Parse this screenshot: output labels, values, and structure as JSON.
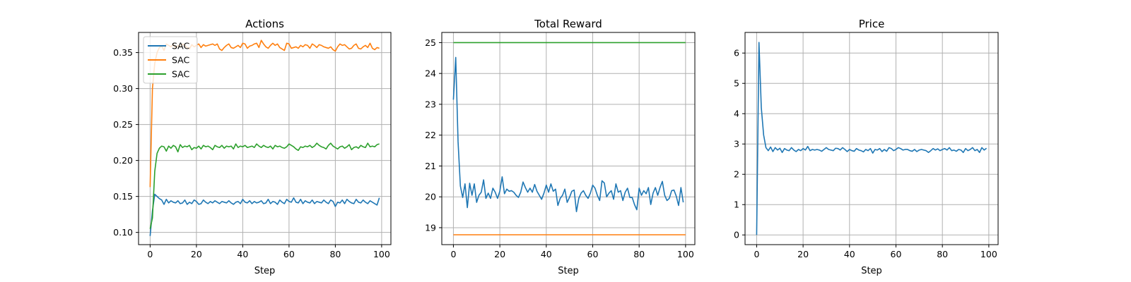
{
  "colors": {
    "tab_blue": "#1f77b4",
    "tab_orange": "#ff7f0e",
    "tab_green": "#2ca02c"
  },
  "chart_data": [
    {
      "type": "line",
      "title": "Actions",
      "xlabel": "Step",
      "ylabel": "",
      "xlim": [
        -5,
        104
      ],
      "ylim": [
        0.083,
        0.378
      ],
      "xticks": [
        0,
        20,
        40,
        60,
        80,
        100
      ],
      "yticks": [
        0.1,
        0.15,
        0.2,
        0.25,
        0.3,
        0.35
      ],
      "ytick_labels": [
        "0.10",
        "0.15",
        "0.20",
        "0.25",
        "0.30",
        "0.35"
      ],
      "grid": true,
      "legend": {
        "placement": "top-left",
        "entries": [
          "SAC",
          "SAC",
          "SAC"
        ]
      },
      "series": [
        {
          "name": "SAC",
          "color": "#1f77b4",
          "x_start": 0,
          "values": [
            0.095,
            0.13,
            0.153,
            0.15,
            0.147,
            0.145,
            0.139,
            0.146,
            0.141,
            0.144,
            0.142,
            0.141,
            0.144,
            0.14,
            0.141,
            0.145,
            0.139,
            0.142,
            0.14,
            0.145,
            0.143,
            0.139,
            0.14,
            0.145,
            0.142,
            0.14,
            0.143,
            0.141,
            0.144,
            0.142,
            0.14,
            0.143,
            0.142,
            0.141,
            0.144,
            0.141,
            0.139,
            0.142,
            0.143,
            0.14,
            0.146,
            0.142,
            0.141,
            0.144,
            0.14,
            0.143,
            0.141,
            0.142,
            0.144,
            0.14,
            0.141,
            0.146,
            0.14,
            0.143,
            0.142,
            0.139,
            0.145,
            0.142,
            0.14,
            0.146,
            0.143,
            0.142,
            0.148,
            0.142,
            0.141,
            0.146,
            0.14,
            0.144,
            0.142,
            0.141,
            0.145,
            0.14,
            0.143,
            0.142,
            0.141,
            0.145,
            0.142,
            0.14,
            0.145,
            0.143,
            0.136,
            0.142,
            0.141,
            0.145,
            0.14,
            0.146,
            0.143,
            0.141,
            0.14,
            0.146,
            0.142,
            0.141,
            0.145,
            0.142,
            0.14,
            0.144,
            0.142,
            0.14,
            0.138,
            0.148
          ]
        },
        {
          "name": "SAC",
          "color": "#ff7f0e",
          "x_start": 0,
          "values": [
            0.163,
            0.3,
            0.335,
            0.35,
            0.357,
            0.359,
            0.353,
            0.362,
            0.36,
            0.358,
            0.362,
            0.356,
            0.36,
            0.358,
            0.362,
            0.36,
            0.357,
            0.355,
            0.361,
            0.358,
            0.36,
            0.362,
            0.357,
            0.361,
            0.359,
            0.36,
            0.361,
            0.362,
            0.36,
            0.362,
            0.355,
            0.353,
            0.357,
            0.36,
            0.362,
            0.357,
            0.356,
            0.358,
            0.36,
            0.357,
            0.363,
            0.362,
            0.356,
            0.359,
            0.36,
            0.362,
            0.363,
            0.357,
            0.367,
            0.362,
            0.358,
            0.356,
            0.36,
            0.363,
            0.36,
            0.362,
            0.357,
            0.355,
            0.353,
            0.363,
            0.362,
            0.356,
            0.357,
            0.358,
            0.356,
            0.36,
            0.358,
            0.361,
            0.36,
            0.356,
            0.362,
            0.36,
            0.357,
            0.361,
            0.36,
            0.358,
            0.357,
            0.356,
            0.358,
            0.354,
            0.352,
            0.358,
            0.362,
            0.36,
            0.361,
            0.358,
            0.355,
            0.356,
            0.36,
            0.362,
            0.356,
            0.355,
            0.358,
            0.36,
            0.357,
            0.363,
            0.356,
            0.354,
            0.357,
            0.356
          ]
        },
        {
          "name": "SAC",
          "color": "#2ca02c",
          "x_start": 0,
          "values": [
            0.105,
            0.12,
            0.185,
            0.21,
            0.217,
            0.22,
            0.219,
            0.213,
            0.22,
            0.217,
            0.221,
            0.219,
            0.212,
            0.222,
            0.218,
            0.22,
            0.219,
            0.221,
            0.215,
            0.218,
            0.217,
            0.22,
            0.216,
            0.221,
            0.219,
            0.22,
            0.218,
            0.215,
            0.221,
            0.219,
            0.218,
            0.221,
            0.217,
            0.22,
            0.219,
            0.22,
            0.216,
            0.223,
            0.218,
            0.22,
            0.219,
            0.221,
            0.218,
            0.219,
            0.22,
            0.218,
            0.223,
            0.22,
            0.218,
            0.221,
            0.219,
            0.218,
            0.22,
            0.216,
            0.221,
            0.219,
            0.22,
            0.218,
            0.217,
            0.219,
            0.223,
            0.221,
            0.219,
            0.216,
            0.214,
            0.219,
            0.218,
            0.22,
            0.219,
            0.221,
            0.218,
            0.22,
            0.224,
            0.221,
            0.219,
            0.218,
            0.216,
            0.221,
            0.224,
            0.22,
            0.218,
            0.216,
            0.219,
            0.22,
            0.217,
            0.219,
            0.222,
            0.215,
            0.218,
            0.219,
            0.217,
            0.221,
            0.219,
            0.218,
            0.224,
            0.219,
            0.22,
            0.219,
            0.222,
            0.223
          ]
        }
      ]
    },
    {
      "type": "line",
      "title": "Total Reward",
      "xlabel": "Step",
      "ylabel": "",
      "xlim": [
        -5,
        104
      ],
      "ylim": [
        18.45,
        25.33
      ],
      "xticks": [
        0,
        20,
        40,
        60,
        80,
        100
      ],
      "yticks": [
        19,
        20,
        21,
        22,
        23,
        24,
        25
      ],
      "ytick_labels": [
        "19",
        "20",
        "21",
        "22",
        "23",
        "24",
        "25"
      ],
      "grid": true,
      "series": [
        {
          "color": "#1f77b4",
          "x_start": 0,
          "values": [
            23.15,
            24.52,
            21.8,
            20.35,
            19.98,
            20.42,
            19.65,
            20.44,
            20.05,
            20.42,
            19.82,
            20.05,
            20.15,
            20.55,
            19.95,
            20.12,
            19.95,
            20.28,
            20.15,
            19.95,
            20.18,
            20.65,
            20.1,
            20.25,
            20.18,
            20.2,
            20.15,
            20.05,
            19.98,
            20.15,
            20.48,
            20.3,
            20.15,
            20.28,
            20.15,
            20.4,
            20.18,
            20.05,
            19.92,
            20.12,
            20.38,
            20.15,
            20.42,
            20.18,
            20.25,
            19.72,
            19.95,
            20.05,
            20.25,
            19.82,
            19.98,
            20.18,
            20.22,
            19.52,
            19.95,
            20.12,
            20.2,
            20.05,
            19.95,
            20.12,
            20.38,
            20.28,
            20.05,
            19.88,
            20.52,
            20.45,
            20.0,
            20.12,
            20.2,
            19.92,
            20.42,
            20.15,
            20.2,
            19.88,
            20.15,
            20.28,
            19.98,
            19.98,
            19.75,
            19.58,
            20.28,
            20.05,
            20.2,
            20.1,
            20.3,
            19.75,
            20.12,
            20.3,
            20.05,
            20.3,
            20.5,
            20.05,
            19.88,
            19.95,
            20.2,
            20.22,
            20.02,
            19.72,
            20.3,
            19.82
          ]
        },
        {
          "color": "#ff7f0e",
          "x_start": 0,
          "values": [
            18.77,
            18.77,
            18.77,
            18.77,
            18.77,
            18.77,
            18.77,
            18.77,
            18.77,
            18.77,
            18.77,
            18.77,
            18.77,
            18.77,
            18.77,
            18.77,
            18.77,
            18.77,
            18.77,
            18.77,
            18.77,
            18.77,
            18.77,
            18.77,
            18.77,
            18.77,
            18.77,
            18.77,
            18.77,
            18.77,
            18.77,
            18.77,
            18.77,
            18.77,
            18.77,
            18.77,
            18.77,
            18.77,
            18.77,
            18.77,
            18.77,
            18.77,
            18.77,
            18.77,
            18.77,
            18.77,
            18.77,
            18.77,
            18.77,
            18.77,
            18.77,
            18.77,
            18.77,
            18.77,
            18.77,
            18.77,
            18.77,
            18.77,
            18.77,
            18.77,
            18.77,
            18.77,
            18.77,
            18.77,
            18.77,
            18.77,
            18.77,
            18.77,
            18.77,
            18.77,
            18.77,
            18.77,
            18.77,
            18.77,
            18.77,
            18.77,
            18.77,
            18.77,
            18.77,
            18.77,
            18.77,
            18.77,
            18.77,
            18.77,
            18.77,
            18.77,
            18.77,
            18.77,
            18.77,
            18.77,
            18.77,
            18.77,
            18.77,
            18.77,
            18.77,
            18.77,
            18.77,
            18.77,
            18.77,
            18.77,
            18.77
          ]
        },
        {
          "color": "#2ca02c",
          "x_start": 0,
          "values": [
            25.0,
            25.0,
            25.0,
            25.0,
            25.0,
            25.0,
            25.0,
            25.0,
            25.0,
            25.0,
            25.0,
            25.0,
            25.0,
            25.0,
            25.0,
            25.0,
            25.0,
            25.0,
            25.0,
            25.0,
            25.0,
            25.0,
            25.0,
            25.0,
            25.0,
            25.0,
            25.0,
            25.0,
            25.0,
            25.0,
            25.0,
            25.0,
            25.0,
            25.0,
            25.0,
            25.0,
            25.0,
            25.0,
            25.0,
            25.0,
            25.0,
            25.0,
            25.0,
            25.0,
            25.0,
            25.0,
            25.0,
            25.0,
            25.0,
            25.0,
            25.0,
            25.0,
            25.0,
            25.0,
            25.0,
            25.0,
            25.0,
            25.0,
            25.0,
            25.0,
            25.0,
            25.0,
            25.0,
            25.0,
            25.0,
            25.0,
            25.0,
            25.0,
            25.0,
            25.0,
            25.0,
            25.0,
            25.0,
            25.0,
            25.0,
            25.0,
            25.0,
            25.0,
            25.0,
            25.0,
            25.0,
            25.0,
            25.0,
            25.0,
            25.0,
            25.0,
            25.0,
            25.0,
            25.0,
            25.0,
            25.0,
            25.0,
            25.0,
            25.0,
            25.0,
            25.0,
            25.0,
            25.0,
            25.0,
            25.0,
            25.0
          ]
        }
      ]
    },
    {
      "type": "line",
      "title": "Price",
      "xlabel": "Step",
      "ylabel": "",
      "xlim": [
        -5,
        104
      ],
      "ylim": [
        -0.32,
        6.68
      ],
      "xticks": [
        0,
        20,
        40,
        60,
        80,
        100
      ],
      "yticks": [
        0,
        1,
        2,
        3,
        4,
        5,
        6
      ],
      "ytick_labels": [
        "0",
        "1",
        "2",
        "3",
        "4",
        "5",
        "6"
      ],
      "grid": true,
      "series": [
        {
          "color": "#1f77b4",
          "x_start": 0,
          "values": [
            0.0,
            6.35,
            4.2,
            3.3,
            2.88,
            2.78,
            2.9,
            2.75,
            2.88,
            2.8,
            2.86,
            2.72,
            2.85,
            2.8,
            2.78,
            2.88,
            2.8,
            2.75,
            2.82,
            2.78,
            2.85,
            2.8,
            2.92,
            2.78,
            2.82,
            2.8,
            2.82,
            2.8,
            2.76,
            2.82,
            2.88,
            2.82,
            2.8,
            2.78,
            2.86,
            2.85,
            2.8,
            2.88,
            2.82,
            2.75,
            2.82,
            2.78,
            2.76,
            2.85,
            2.8,
            2.78,
            2.74,
            2.82,
            2.78,
            2.85,
            2.7,
            2.82,
            2.8,
            2.85,
            2.75,
            2.82,
            2.76,
            2.88,
            2.85,
            2.78,
            2.82,
            2.88,
            2.85,
            2.8,
            2.82,
            2.82,
            2.78,
            2.76,
            2.82,
            2.75,
            2.8,
            2.82,
            2.8,
            2.78,
            2.72,
            2.78,
            2.85,
            2.8,
            2.84,
            2.78,
            2.82,
            2.85,
            2.8,
            2.88,
            2.78,
            2.8,
            2.76,
            2.82,
            2.8,
            2.72,
            2.85,
            2.78,
            2.82,
            2.88,
            2.78,
            2.82,
            2.72,
            2.88,
            2.8,
            2.86
          ]
        }
      ]
    }
  ]
}
